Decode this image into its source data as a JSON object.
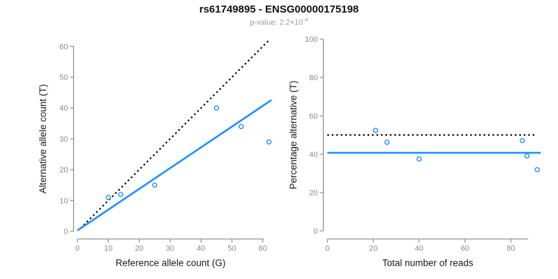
{
  "header": {
    "title": "rs61749895 - ENSG00000175198",
    "pvalue_prefix": "p-value: 2.2×10",
    "pvalue_exponent": "-4"
  },
  "colors": {
    "accent_blue": "#1E90FF",
    "reference_line": "#000000",
    "axis_gray": "#8a8a8a",
    "axis_title_black": "#1a1a1a"
  },
  "chart_data": [
    {
      "type": "scatter",
      "name": "allele-counts-plot",
      "xlabel": "Reference allele count (G)",
      "ylabel": "Alternative allele count (T)",
      "xticks": [
        0,
        10,
        20,
        30,
        40,
        50,
        60
      ],
      "yticks": [
        0,
        10,
        20,
        30,
        40,
        50,
        60
      ],
      "xaxis_range": [
        0,
        60.3
      ],
      "yaxis_range": [
        0,
        60
      ],
      "xlim": [
        0,
        63
      ],
      "ylim": [
        0,
        63
      ],
      "grid": false,
      "points": [
        {
          "x": 10,
          "y": 11
        },
        {
          "x": 14,
          "y": 12
        },
        {
          "x": 25,
          "y": 15
        },
        {
          "x": 45,
          "y": 40
        },
        {
          "x": 53,
          "y": 34
        },
        {
          "x": 62,
          "y": 29
        }
      ],
      "reference_line": {
        "style": "dotted",
        "from": {
          "x": 1,
          "y": 1
        },
        "to": {
          "x": 62.3,
          "y": 62.3
        },
        "meaning": "identity y=x"
      },
      "fit_line": {
        "style": "solid",
        "from": {
          "x": 0,
          "y": 0.3
        },
        "to": {
          "x": 62.8,
          "y": 42.6
        },
        "meaning": "regression slope ~0.67"
      }
    },
    {
      "type": "scatter",
      "name": "percentage-alternative-plot",
      "xlabel": "Total number of reads",
      "ylabel": "Percentage alternative (T)",
      "xticks": [
        0,
        20,
        40,
        60,
        80
      ],
      "yticks": [
        0,
        20,
        40,
        60,
        80,
        100
      ],
      "xaxis_range": [
        0,
        87.5
      ],
      "yaxis_range": [
        0,
        100
      ],
      "xlim": [
        0,
        93
      ],
      "ylim": [
        0,
        100
      ],
      "grid": false,
      "points": [
        {
          "x": 21,
          "y": 52.4
        },
        {
          "x": 26,
          "y": 46.2
        },
        {
          "x": 40,
          "y": 37.5
        },
        {
          "x": 85,
          "y": 47.1
        },
        {
          "x": 87,
          "y": 39.1
        },
        {
          "x": 91.5,
          "y": 31.9
        }
      ],
      "reference_line": {
        "style": "dotted",
        "from": {
          "x": 0,
          "y": 50
        },
        "to": {
          "x": 90.5,
          "y": 50
        },
        "meaning": "50% expectation"
      },
      "fit_line": {
        "style": "solid",
        "from": {
          "x": 0,
          "y": 40.7
        },
        "to": {
          "x": 93,
          "y": 40.7
        },
        "meaning": "mean alternative fraction ~40.7%"
      }
    }
  ]
}
